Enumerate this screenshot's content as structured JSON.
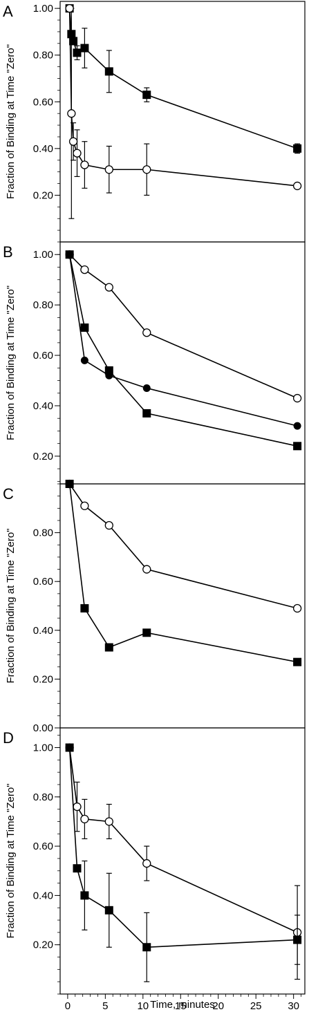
{
  "figure": {
    "xlabel": "Time, minutes",
    "x_ticks": [
      "0",
      "5",
      "10",
      "15",
      "20",
      "25",
      "30"
    ]
  },
  "chart_data": [
    {
      "panel": "A",
      "type": "line",
      "ylabel": "Fraction of Binding at Time \"Zero\"",
      "y_tick_labels": [
        "0.20",
        "0.40",
        "0.60",
        "0.80",
        "1.00"
      ],
      "xlim": [
        -1,
        31.5
      ],
      "ylim": [
        0.0,
        1.03
      ],
      "grid": false,
      "series": [
        {
          "marker": "filled-square",
          "x": [
            0.25,
            0.5,
            0.75,
            1.25,
            2.25,
            5.5,
            10.5,
            30.5
          ],
          "y": [
            1.0,
            0.89,
            0.86,
            0.81,
            0.83,
            0.73,
            0.63,
            0.4
          ],
          "err": [
            0,
            0,
            0,
            0.03,
            0.085,
            0.09,
            0.03,
            0.02
          ]
        },
        {
          "marker": "open-circle",
          "x": [
            0.25,
            0.5,
            0.75,
            1.25,
            2.25,
            5.5,
            10.5,
            30.5
          ],
          "y": [
            1.0,
            0.55,
            0.43,
            0.38,
            0.33,
            0.31,
            0.31,
            0.24
          ],
          "err": [
            0,
            0.45,
            0.08,
            0.1,
            0.1,
            0.1,
            0.11,
            0
          ]
        }
      ]
    },
    {
      "panel": "B",
      "type": "line",
      "ylabel": "Fraction of Binding at Time \"Zero\"",
      "y_tick_labels": [
        "0.20",
        "0.40",
        "0.60",
        "0.80",
        "1.00"
      ],
      "xlim": [
        -1,
        31.5
      ],
      "ylim": [
        0.09,
        1.05
      ],
      "grid": false,
      "series": [
        {
          "marker": "open-circle",
          "x": [
            0.25,
            2.25,
            5.5,
            10.5,
            30.5
          ],
          "y": [
            1.0,
            0.94,
            0.87,
            0.69,
            0.43
          ]
        },
        {
          "marker": "filled-square",
          "x": [
            0.25,
            2.25,
            5.5,
            10.5,
            30.5
          ],
          "y": [
            1.0,
            0.71,
            0.54,
            0.37,
            0.24
          ]
        },
        {
          "marker": "filled-circle",
          "x": [
            0.25,
            2.25,
            5.5,
            10.5,
            30.5
          ],
          "y": [
            1.0,
            0.58,
            0.52,
            0.47,
            0.32
          ]
        }
      ]
    },
    {
      "panel": "C",
      "type": "line",
      "ylabel": "Fraction of Binding at Time \"Zero\"",
      "y_tick_labels": [
        "0.00",
        "0.20",
        "0.40",
        "0.60",
        "0.80"
      ],
      "xlim": [
        -1,
        31.5
      ],
      "ylim": [
        0.0,
        1.0
      ],
      "grid": false,
      "series": [
        {
          "marker": "open-circle",
          "x": [
            0.25,
            2.25,
            5.5,
            10.5,
            30.5
          ],
          "y": [
            1.0,
            0.91,
            0.83,
            0.65,
            0.49
          ]
        },
        {
          "marker": "filled-square",
          "x": [
            0.25,
            2.25,
            5.5,
            10.5,
            30.5
          ],
          "y": [
            1.0,
            0.49,
            0.33,
            0.39,
            0.27
          ]
        }
      ]
    },
    {
      "panel": "D",
      "type": "line",
      "ylabel": "Fraction of Binding at Time \"Zero\"",
      "y_tick_labels": [
        "0.20",
        "0.40",
        "0.60",
        "0.80",
        "1.00"
      ],
      "xlim": [
        -1,
        31.5
      ],
      "ylim": [
        0.0,
        1.08
      ],
      "grid": false,
      "series": [
        {
          "marker": "open-circle",
          "x": [
            0.25,
            1.25,
            2.25,
            5.5,
            10.5,
            30.5
          ],
          "y": [
            1.0,
            0.76,
            0.71,
            0.7,
            0.53,
            0.25
          ],
          "err": [
            0,
            0.1,
            0.08,
            0.07,
            0.07,
            0.19
          ]
        },
        {
          "marker": "filled-square",
          "x": [
            0.25,
            1.25,
            2.25,
            5.5,
            10.5,
            30.5
          ],
          "y": [
            1.0,
            0.51,
            0.4,
            0.34,
            0.19,
            0.22
          ],
          "err": [
            0,
            0,
            0.14,
            0.15,
            0.14,
            0.1
          ]
        }
      ]
    }
  ]
}
